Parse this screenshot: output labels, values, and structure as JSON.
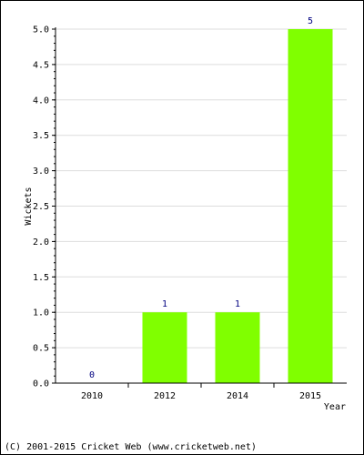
{
  "chart_data": {
    "type": "bar",
    "categories": [
      "2010",
      "2012",
      "2014",
      "2015"
    ],
    "values": [
      0,
      1,
      1,
      5
    ],
    "data_labels": [
      "0",
      "1",
      "1",
      "5"
    ],
    "title": "",
    "xlabel": "Year",
    "ylabel": "Wickets",
    "ylim": [
      0,
      5
    ],
    "yticks": [
      "0.0",
      "0.5",
      "1.0",
      "1.5",
      "2.0",
      "2.5",
      "3.0",
      "3.5",
      "4.0",
      "4.5",
      "5.0"
    ],
    "grid": true,
    "legend": "none",
    "colors": {
      "bar": "#80ff00",
      "data_label": "#000080",
      "grid": "#dddddd",
      "axis": "#000000"
    }
  },
  "footer": {
    "copyright": "(C) 2001-2015 Cricket Web (www.cricketweb.net)"
  }
}
